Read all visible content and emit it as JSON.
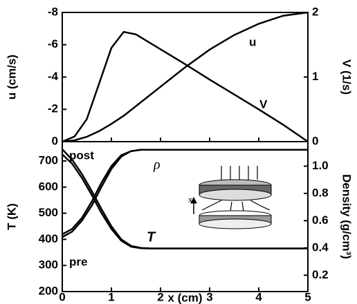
{
  "chart_data": [
    {
      "type": "line",
      "ylabel": "u (cm/s)",
      "y2label": "V (1/s)",
      "x": [
        0,
        0.25,
        0.5,
        0.75,
        1,
        1.25,
        1.5,
        2,
        2.5,
        3,
        3.5,
        4,
        4.5,
        5
      ],
      "xlim": [
        0,
        5
      ],
      "xticks": [
        0,
        1,
        2,
        3,
        4,
        5
      ],
      "ylim": [
        0,
        -8
      ],
      "yticks": [
        0,
        -2,
        -4,
        -6,
        -8
      ],
      "y2lim": [
        0,
        2
      ],
      "y2ticks": [
        0,
        1,
        2
      ],
      "series": [
        {
          "name": "u",
          "color": "#000000",
          "values": [
            0,
            -0.08,
            -0.3,
            -0.65,
            -1.1,
            -1.6,
            -2.2,
            -3.4,
            -4.6,
            -5.7,
            -6.6,
            -7.3,
            -7.8,
            -8
          ]
        },
        {
          "name": "V",
          "color": "#000000",
          "axis": "y2",
          "values": [
            0,
            0.08,
            0.35,
            0.9,
            1.45,
            1.7,
            1.66,
            1.43,
            1.2,
            0.96,
            0.73,
            0.5,
            0.26,
            0
          ]
        }
      ]
    },
    {
      "type": "line",
      "xlabel": "x (cm)",
      "ylabel": "T (K)",
      "y2label": "Density (g/cm³)",
      "annotations": [
        "ρ",
        "T",
        "x"
      ],
      "x": [
        0,
        0.2,
        0.4,
        0.6,
        0.8,
        1,
        1.2,
        1.4,
        1.6,
        1.8,
        2,
        3,
        4,
        5
      ],
      "xlim": [
        0,
        5
      ],
      "xticks": [
        0,
        1,
        2,
        3,
        4,
        5
      ],
      "ylim": [
        200,
        774
      ],
      "yticks": [
        200,
        300,
        400,
        500,
        600,
        700
      ],
      "y2lim": [
        0.08,
        1.18
      ],
      "y2ticks": [
        0.2,
        0.4,
        0.6,
        0.8,
        {
          "value": 1,
          "label": "1.0"
        }
      ],
      "series": [
        {
          "name": "post",
          "color": "#000000",
          "values": [
            745,
            705,
            650,
            585,
            515,
            450,
            400,
            375,
            367,
            365,
            365,
            365,
            365,
            365
          ]
        },
        {
          "name": "pre",
          "color": "#000000",
          "values": [
            725,
            690,
            635,
            570,
            500,
            440,
            395,
            372,
            366,
            365,
            365,
            365,
            365,
            365
          ]
        },
        {
          "color": "#000000",
          "axis": "y2",
          "values": [
            0.5,
            0.54,
            0.62,
            0.74,
            0.88,
            1.0,
            1.08,
            1.11,
            1.12,
            1.12,
            1.12,
            1.12,
            1.12,
            1.12
          ]
        },
        {
          "color": "#000000",
          "axis": "y2",
          "values": [
            0.48,
            0.52,
            0.6,
            0.71,
            0.85,
            0.98,
            1.07,
            1.11,
            1.12,
            1.12,
            1.12,
            1.12,
            1.12,
            1.12
          ]
        }
      ]
    }
  ]
}
